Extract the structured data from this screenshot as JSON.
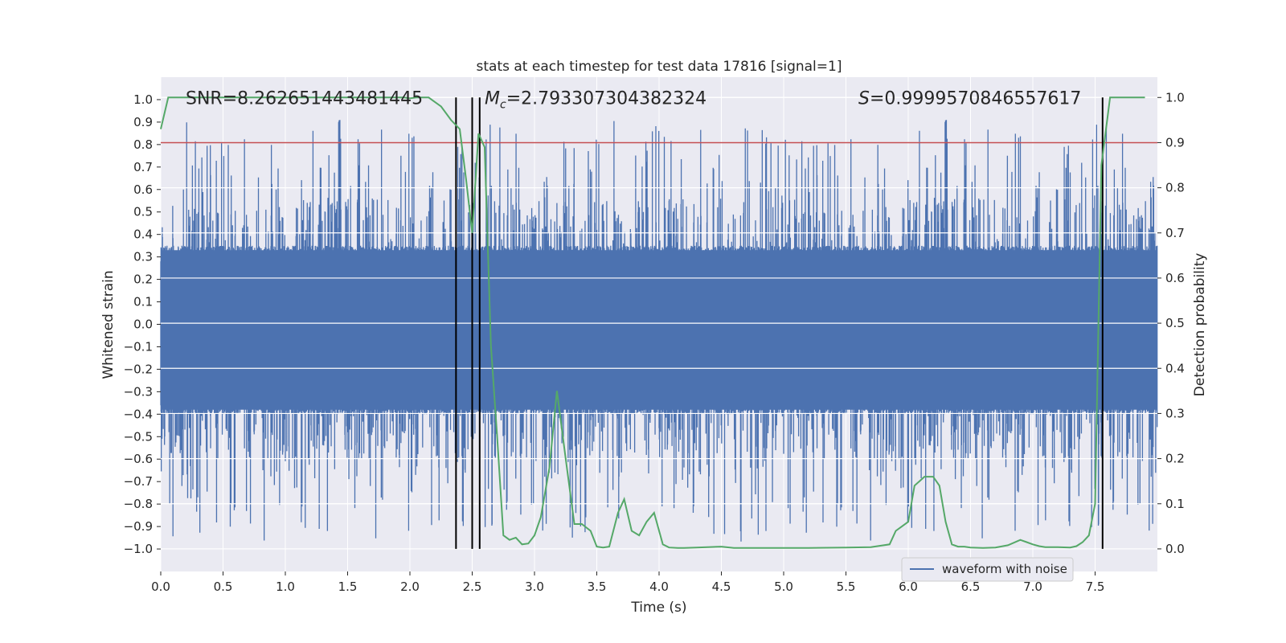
{
  "chart_data": {
    "type": "line",
    "title": "stats at each timestep for test data 17816 [signal=1]",
    "xlabel": "Time (s)",
    "ylabel": "Whitened strain",
    "ylabel_right": "Detection probability",
    "xlim": [
      0.0,
      8.0
    ],
    "ylim": [
      -1.1,
      1.1
    ],
    "ylim_right": [
      -0.05,
      1.045
    ],
    "x_ticks": [
      "0.0",
      "0.5",
      "1.0",
      "1.5",
      "2.0",
      "2.5",
      "3.0",
      "3.5",
      "4.0",
      "4.5",
      "5.0",
      "5.5",
      "6.0",
      "6.5",
      "7.0",
      "7.5"
    ],
    "x_tick_values": [
      0.0,
      0.5,
      1.0,
      1.5,
      2.0,
      2.5,
      3.0,
      3.5,
      4.0,
      4.5,
      5.0,
      5.5,
      6.0,
      6.5,
      7.0,
      7.5
    ],
    "y_ticks": [
      "1.0",
      "0.9",
      "0.8",
      "0.7",
      "0.6",
      "0.5",
      "0.4",
      "0.3",
      "0.2",
      "0.1",
      "0.0",
      "−0.1",
      "−0.2",
      "−0.3",
      "−0.4",
      "−0.5",
      "−0.6",
      "−0.7",
      "−0.8",
      "−0.9",
      "−1.0"
    ],
    "y_tick_values": [
      1.0,
      0.9,
      0.8,
      0.7,
      0.6,
      0.5,
      0.4,
      0.3,
      0.2,
      0.1,
      0.0,
      -0.1,
      -0.2,
      -0.3,
      -0.4,
      -0.5,
      -0.6,
      -0.7,
      -0.8,
      -0.9,
      -1.0
    ],
    "y2_ticks": [
      "1.0",
      "0.9",
      "0.8",
      "0.7",
      "0.6",
      "0.5",
      "0.4",
      "0.3",
      "0.2",
      "0.1",
      "0.0"
    ],
    "y2_tick_values": [
      1.0,
      0.9,
      0.8,
      0.7,
      0.6,
      0.5,
      0.4,
      0.3,
      0.2,
      0.1,
      0.0
    ],
    "annotations": [
      {
        "text": "SNR=8.262651443481445",
        "x": 0.2,
        "y": 0.98
      },
      {
        "text": "=2.793307304382324",
        "symbol": "M",
        "subscript": "c",
        "x": 2.6,
        "y": 0.98
      },
      {
        "text": "=0.9999570846557617",
        "symbol": "S",
        "x": 5.6,
        "y": 0.98
      }
    ],
    "threshold": {
      "value": 0.9,
      "axis": "right",
      "color": "#c44e52"
    },
    "vertical_lines": [
      2.37,
      2.5,
      2.56,
      7.56
    ],
    "vertical_line_range": [
      0.0,
      1.0
    ],
    "series": [
      {
        "name": "waveform with noise",
        "axis": "left",
        "color": "#4c72b0",
        "style": "dense-noise",
        "duration": 8.0,
        "n_samples": 4000,
        "envelope": 0.35,
        "peak_max": 0.91,
        "peak_min": -1.0
      },
      {
        "name": "detection probability",
        "axis": "right",
        "color": "#55a868",
        "x": [
          0.0,
          0.06,
          0.1,
          0.2,
          0.4,
          0.6,
          0.8,
          1.0,
          1.2,
          1.4,
          1.6,
          1.8,
          1.95,
          2.0,
          2.05,
          2.15,
          2.25,
          2.33,
          2.4,
          2.45,
          2.5,
          2.55,
          2.6,
          2.65,
          2.7,
          2.75,
          2.8,
          2.85,
          2.9,
          2.95,
          3.0,
          3.05,
          3.12,
          3.18,
          3.25,
          3.32,
          3.38,
          3.45,
          3.5,
          3.55,
          3.6,
          3.67,
          3.72,
          3.78,
          3.84,
          3.9,
          3.96,
          4.03,
          4.08,
          4.15,
          4.2,
          4.3,
          4.5,
          4.6,
          4.7,
          4.8,
          5.0,
          5.2,
          5.5,
          5.7,
          5.85,
          5.9,
          5.95,
          6.0,
          6.05,
          6.13,
          6.2,
          6.25,
          6.3,
          6.35,
          6.4,
          6.45,
          6.5,
          6.6,
          6.7,
          6.8,
          6.9,
          6.95,
          7.0,
          7.05,
          7.1,
          7.2,
          7.3,
          7.35,
          7.4,
          7.45,
          7.5,
          7.55,
          7.62,
          7.66,
          7.7,
          7.8,
          7.9
        ],
        "values": [
          0.93,
          1.0,
          1.0,
          1.0,
          1.0,
          1.0,
          1.0,
          1.0,
          1.0,
          1.0,
          1.0,
          1.0,
          1.0,
          0.998,
          1.0,
          1.0,
          0.98,
          0.95,
          0.93,
          0.82,
          0.7,
          0.92,
          0.89,
          0.45,
          0.25,
          0.03,
          0.02,
          0.025,
          0.01,
          0.012,
          0.03,
          0.07,
          0.18,
          0.35,
          0.2,
          0.055,
          0.055,
          0.04,
          0.005,
          0.003,
          0.005,
          0.08,
          0.11,
          0.04,
          0.03,
          0.06,
          0.08,
          0.01,
          0.003,
          0.002,
          0.002,
          0.003,
          0.005,
          0.002,
          0.002,
          0.002,
          0.002,
          0.002,
          0.003,
          0.004,
          0.01,
          0.04,
          0.05,
          0.06,
          0.14,
          0.16,
          0.16,
          0.14,
          0.06,
          0.01,
          0.005,
          0.005,
          0.003,
          0.002,
          0.003,
          0.008,
          0.02,
          0.015,
          0.01,
          0.006,
          0.004,
          0.004,
          0.003,
          0.006,
          0.015,
          0.03,
          0.1,
          0.85,
          1.0,
          1.0,
          1.0,
          1.0,
          1.0
        ]
      }
    ]
  },
  "legend": {
    "label": "waveform with noise",
    "position": "lower-right"
  }
}
